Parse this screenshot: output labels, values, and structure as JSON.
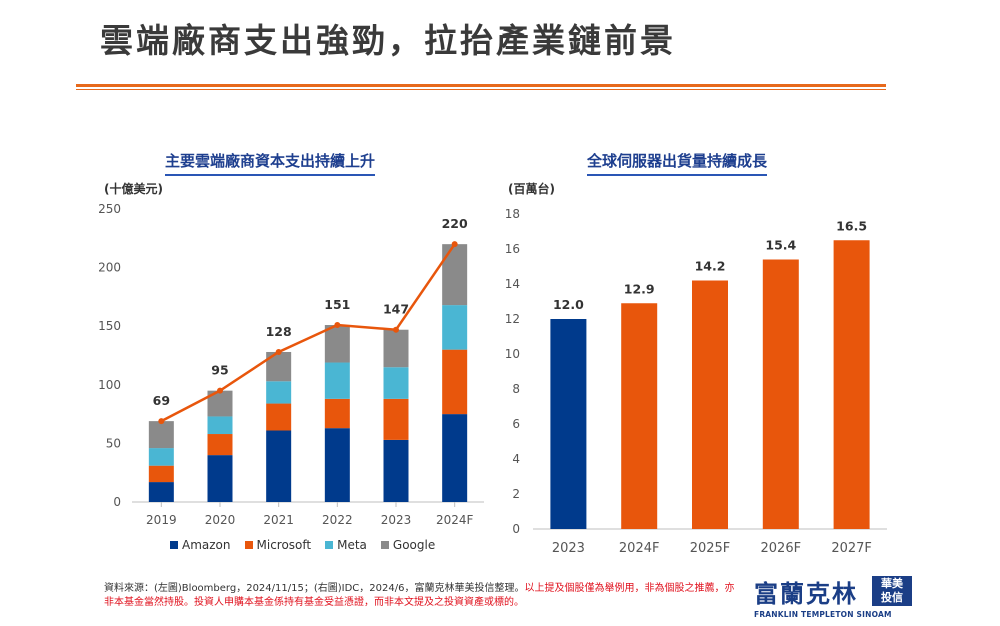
{
  "page": {
    "title": "雲端廠商支出強勁，拉抬產業鏈前景",
    "footnote_normal": "資料來源：(左圖)Bloomberg，2024/11/15；(右圖)IDC，2024/6，富蘭克林華美投信整理。",
    "footnote_red": "以上提及個股僅為舉例用，非為個股之推薦，亦非本基金當然持股。投資人申購本基金係持有基金受益憑證，而非本文提及之投資資產或標的。",
    "logo": {
      "cn": "富蘭克林",
      "box_line1": "華美",
      "box_line2": "投信",
      "en": "FRANKLIN TEMPLETON SINOAM"
    }
  },
  "chart_data": [
    {
      "type": "bar",
      "stacked": true,
      "title": "主要雲端廠商資本支出持續上升",
      "unit": "(十億美元)",
      "categories": [
        "2019",
        "2020",
        "2021",
        "2022",
        "2023",
        "2024F"
      ],
      "ylim": [
        0,
        250
      ],
      "yticks": [
        "0",
        "50",
        "100",
        "150",
        "200",
        "250"
      ],
      "series": [
        {
          "name": "Amazon",
          "color": "#003a8c",
          "values": [
            17,
            40,
            61,
            63,
            53,
            75
          ]
        },
        {
          "name": "Microsoft",
          "color": "#e8560c",
          "values": [
            14,
            18,
            23,
            25,
            35,
            55
          ]
        },
        {
          "name": "Meta",
          "color": "#4ab6d3",
          "values": [
            15,
            15,
            19,
            31,
            27,
            38
          ]
        },
        {
          "name": "Google",
          "color": "#8a8a8a",
          "values": [
            23,
            22,
            25,
            32,
            32,
            52
          ]
        }
      ],
      "totals": [
        69,
        95,
        128,
        151,
        147,
        220
      ],
      "total_line_color": "#e8560c",
      "legend": "bottom",
      "grid": false
    },
    {
      "type": "bar",
      "title": "全球伺服器出貨量持續成長",
      "unit": "(百萬台)",
      "categories": [
        "2023",
        "2024F",
        "2025F",
        "2026F",
        "2027F"
      ],
      "values": [
        12.0,
        12.9,
        14.2,
        15.4,
        16.5
      ],
      "labels": [
        "12.0",
        "12.9",
        "14.2",
        "15.4",
        "16.5"
      ],
      "colors": [
        "#003a8c",
        "#e8560c",
        "#e8560c",
        "#e8560c",
        "#e8560c"
      ],
      "ylim": [
        0,
        18
      ],
      "yticks": [
        "0",
        "2",
        "4",
        "6",
        "8",
        "10",
        "12",
        "14",
        "16",
        "18"
      ],
      "grid": false
    }
  ]
}
